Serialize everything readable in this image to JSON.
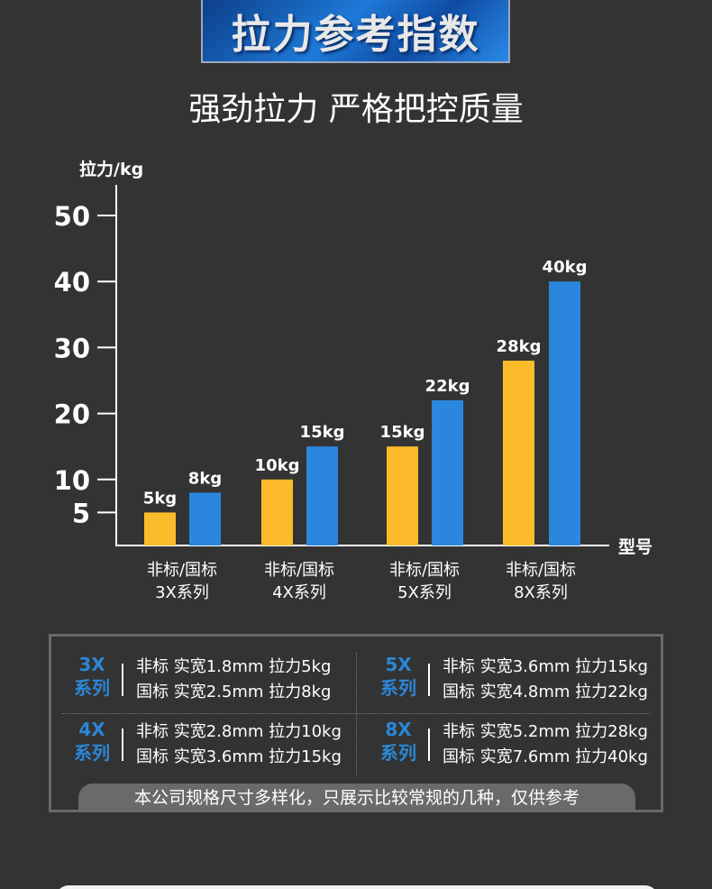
{
  "banner": {
    "title": "拉力参考指数"
  },
  "subtitle": "强劲拉力 严格把控质量",
  "chart_data": {
    "type": "bar",
    "ylabel": "拉力/kg",
    "xlabel": "型号",
    "ylim": [
      0,
      50
    ],
    "yticks": [
      5,
      10,
      20,
      30,
      40,
      50
    ],
    "categories": [
      "非标/国标\n3X系列",
      "非标/国标\n4X系列",
      "非标/国标\n5X系列",
      "非标/国标\n8X系列"
    ],
    "category_lines": [
      [
        "非标/国标",
        "3X系列"
      ],
      [
        "非标/国标",
        "4X系列"
      ],
      [
        "非标/国标",
        "5X系列"
      ],
      [
        "非标/国标",
        "8X系列"
      ]
    ],
    "series": [
      {
        "name": "非标",
        "color": "#fbbb2a",
        "values": [
          5,
          10,
          15,
          28
        ],
        "labels": [
          "5kg",
          "10kg",
          "15kg",
          "28kg"
        ]
      },
      {
        "name": "国标",
        "color": "#2b87de",
        "values": [
          8,
          15,
          22,
          40
        ],
        "labels": [
          "8kg",
          "15kg",
          "22kg",
          "40kg"
        ]
      }
    ]
  },
  "specs": [
    {
      "series": [
        "3X",
        "系列"
      ],
      "lines": [
        "非标  实宽1.8mm 拉力5kg",
        "国标  实宽2.5mm 拉力8kg"
      ]
    },
    {
      "series": [
        "5X",
        "系列"
      ],
      "lines": [
        "非标  实宽3.6mm 拉力15kg",
        "国标  实宽4.8mm 拉力22kg"
      ]
    },
    {
      "series": [
        "4X",
        "系列"
      ],
      "lines": [
        "非标  实宽2.8mm 拉力10kg",
        "国标  实宽3.6mm 拉力15kg"
      ]
    },
    {
      "series": [
        "8X",
        "系列"
      ],
      "lines": [
        "非标  实宽5.2mm 拉力28kg",
        "国标  实宽7.6mm 拉力40kg"
      ]
    }
  ],
  "note": "本公司规格尺寸多样化，只展示比较常规的几种，仅供参考"
}
